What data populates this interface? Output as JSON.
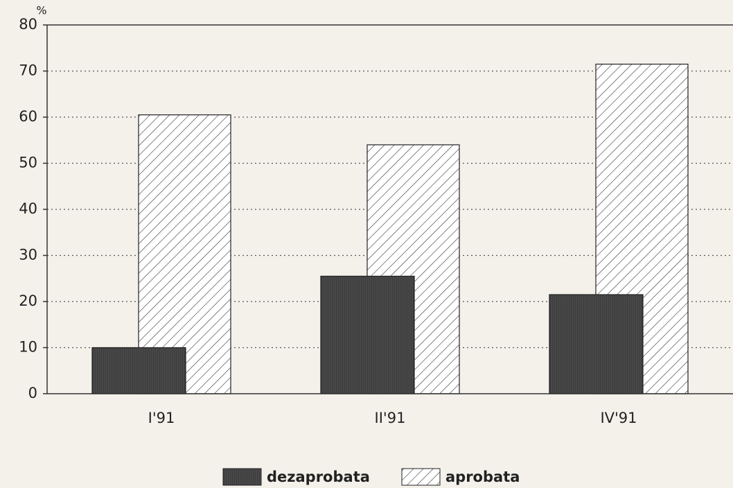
{
  "chart_data": {
    "type": "bar",
    "ylabel": "%",
    "categories": [
      "I'91",
      "II'91",
      "IV'91"
    ],
    "series": [
      {
        "name": "dezaprobata",
        "color": "#3c3c3c",
        "pattern": "solid",
        "values": [
          10,
          25.5,
          21.5
        ]
      },
      {
        "name": "aprobata",
        "color": "#ffffff",
        "pattern": "hatch",
        "values": [
          60.5,
          54,
          71.5
        ]
      }
    ],
    "ylim": [
      0,
      80
    ],
    "yticks": [
      0,
      10,
      20,
      30,
      40,
      50,
      60,
      70,
      80
    ],
    "grid": true
  }
}
